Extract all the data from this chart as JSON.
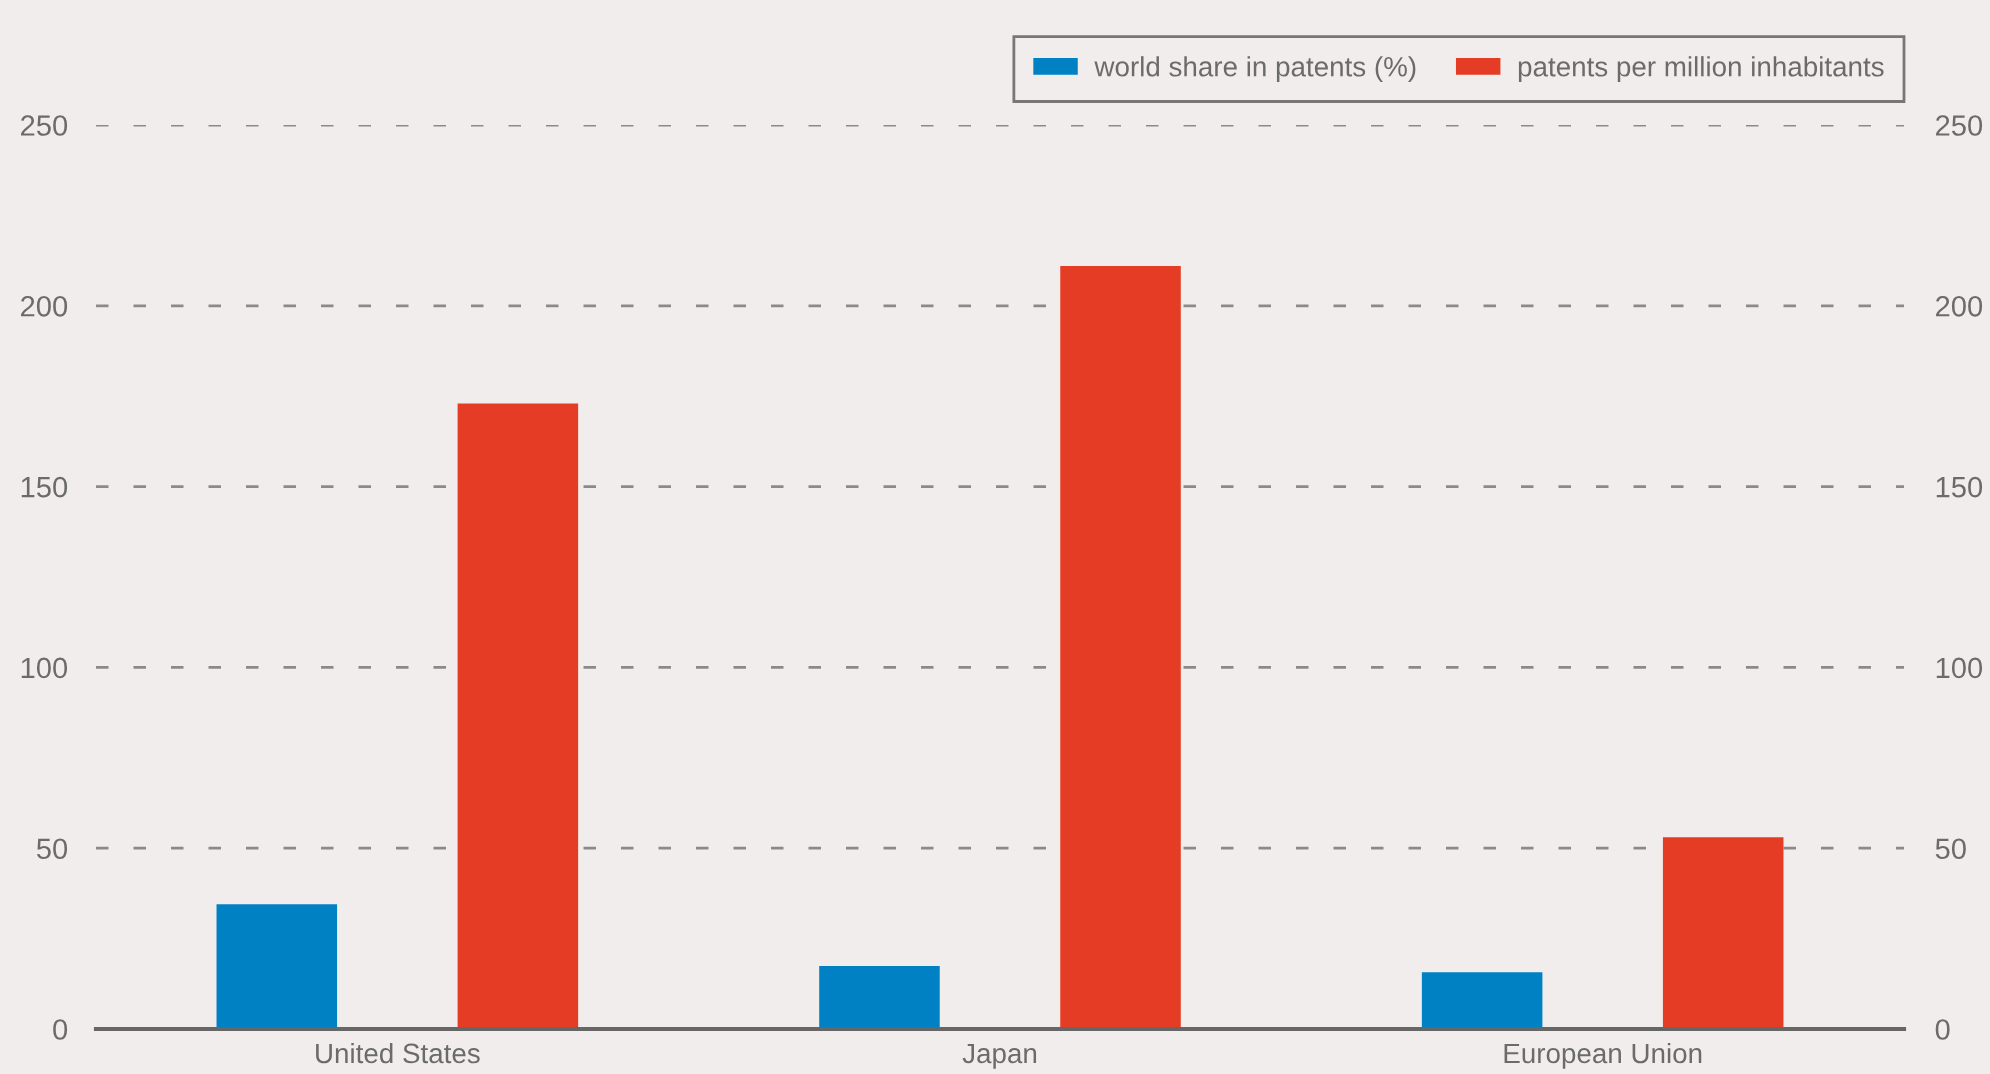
{
  "chart_data": {
    "type": "bar",
    "categories": [
      "United States",
      "Japan",
      "European Union"
    ],
    "series": [
      {
        "name": "world share in patents (%)",
        "color": "#0081c3",
        "values": [
          34.5,
          17.4,
          15.7
        ]
      },
      {
        "name": "patents per million inhabitants",
        "color": "#e53d25",
        "values": [
          173,
          211,
          53
        ]
      }
    ],
    "ylim": [
      0,
      250
    ],
    "yticks": [
      0,
      50,
      100,
      150,
      200,
      250
    ],
    "y2lim": [
      0,
      250
    ],
    "y2ticks": [
      0,
      50,
      100,
      150,
      200,
      250
    ],
    "grid": "y",
    "legend": "top right"
  }
}
